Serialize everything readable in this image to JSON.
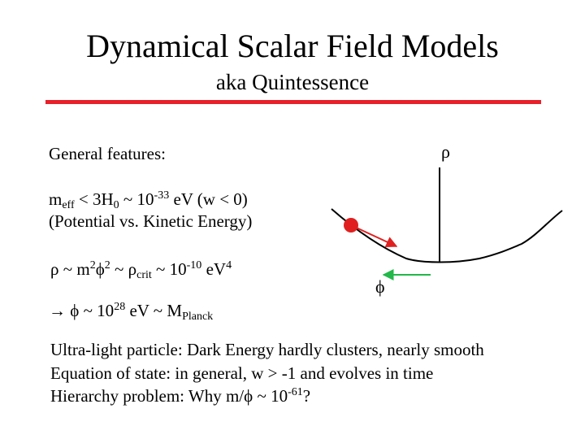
{
  "title": "Dynamical Scalar Field Models",
  "subtitle": "aka Quintessence",
  "colors": {
    "rule": "#e8202a",
    "red_arrow": "#e02020",
    "green_arrow": "#22b84a",
    "ball": "#e02020"
  },
  "features_label": "General features:",
  "rho_symbol": "ρ",
  "phi_symbol": "ϕ",
  "meff": {
    "m": "m",
    "eff": "eff",
    "lt": " < 3H",
    "sub0": "0",
    "approx": " ~ 10",
    "exp": "-33",
    "unit": " eV  (w < 0)"
  },
  "potential_line": "(Potential vs. Kinetic Energy)",
  "rho_line": {
    "rho": "ρ",
    "a": " ~ m",
    "sq1": "2",
    "phi": "ϕ",
    "sq2": "2",
    "b": " ~ ",
    "rho2": "ρ",
    "crit": "crit",
    "c": " ~ 10",
    "exp": "-10",
    "d": " eV",
    "four": "4"
  },
  "phi_line": {
    "arrow": "→",
    "phi": " ϕ",
    "a": " ~ 10",
    "exp": "28",
    "b": " eV ~ M",
    "planck": "Planck"
  },
  "ultralight_line": "Ultra-light particle: Dark Energy hardly clusters, nearly smooth",
  "eos_line": "Equation of state: in general, w > -1 and evolves in time",
  "hierarchy_line": {
    "a": "Hierarchy problem: Why m/",
    "phi": "ϕ",
    "b": " ~ 10",
    "exp": "-61",
    "c": "?"
  }
}
